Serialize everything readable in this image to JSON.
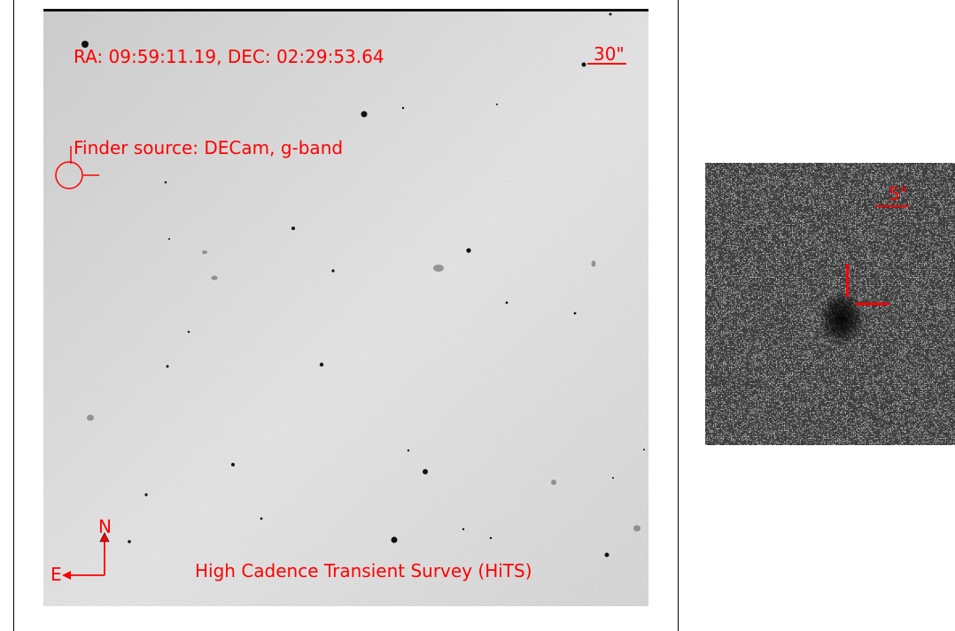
{
  "finder_chart": {
    "coordinates": "RA: 09:59:11.19, DEC: 02:29:53.64",
    "finder_source": "Finder source: DECam, g-band",
    "survey": "High Cadence Transient Survey (HiTS)",
    "scale_bar_label": "30\"",
    "compass": {
      "north": "N",
      "east": "E"
    },
    "annotation_color": "#ff0000"
  },
  "zoom_panel": {
    "scale_bar_label": "5\""
  }
}
